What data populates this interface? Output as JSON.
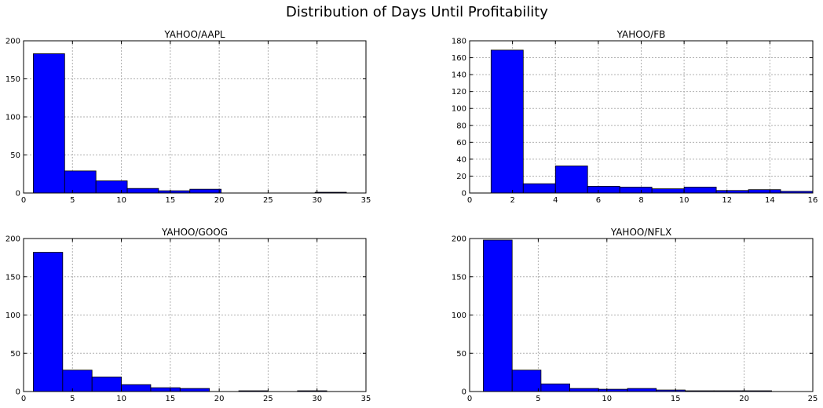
{
  "figure": {
    "title": "Distribution of Days Until Profitability"
  },
  "colors": {
    "bar_fill": "#0000ff",
    "bar_edge": "#000000",
    "grid": "#b0b0b0",
    "axes": "#000000"
  },
  "chart_data": [
    {
      "type": "bar",
      "title": "YAHOO/AAPL",
      "xlabel": "",
      "ylabel": "",
      "grid": true,
      "xlim": [
        0,
        35
      ],
      "ylim": [
        0,
        200
      ],
      "xticks": [
        0,
        5,
        10,
        15,
        20,
        25,
        30,
        35
      ],
      "yticks": [
        0,
        50,
        100,
        150,
        200
      ],
      "bins": [
        [
          1,
          4.2,
          183
        ],
        [
          4.2,
          7.4,
          29
        ],
        [
          7.4,
          10.6,
          16
        ],
        [
          10.6,
          13.8,
          6
        ],
        [
          13.8,
          17,
          3
        ],
        [
          17,
          20.2,
          5
        ],
        [
          20.2,
          23.4,
          0
        ],
        [
          23.4,
          26.6,
          0
        ],
        [
          26.6,
          29.8,
          0
        ],
        [
          29.8,
          33,
          1
        ]
      ]
    },
    {
      "type": "bar",
      "title": "YAHOO/FB",
      "xlabel": "",
      "ylabel": "",
      "grid": true,
      "xlim": [
        0,
        16
      ],
      "ylim": [
        0,
        180
      ],
      "xticks": [
        0,
        2,
        4,
        6,
        8,
        10,
        12,
        14,
        16
      ],
      "yticks": [
        0,
        20,
        40,
        60,
        80,
        100,
        120,
        140,
        160,
        180
      ],
      "bins": [
        [
          1,
          2.5,
          169
        ],
        [
          2.5,
          4,
          11
        ],
        [
          4,
          5.5,
          32
        ],
        [
          5.5,
          7,
          8
        ],
        [
          7,
          8.5,
          7
        ],
        [
          8.5,
          10,
          5
        ],
        [
          10,
          11.5,
          7
        ],
        [
          11.5,
          13,
          3
        ],
        [
          13,
          14.5,
          4
        ],
        [
          14.5,
          16,
          2
        ]
      ]
    },
    {
      "type": "bar",
      "title": "YAHOO/GOOG",
      "xlabel": "",
      "ylabel": "",
      "grid": true,
      "xlim": [
        0,
        35
      ],
      "ylim": [
        0,
        200
      ],
      "xticks": [
        0,
        5,
        10,
        15,
        20,
        25,
        30,
        35
      ],
      "yticks": [
        0,
        50,
        100,
        150,
        200
      ],
      "bins": [
        [
          1,
          4,
          182
        ],
        [
          4,
          7,
          28
        ],
        [
          7,
          10,
          19
        ],
        [
          10,
          13,
          9
        ],
        [
          13,
          16,
          5
        ],
        [
          16,
          19,
          4
        ],
        [
          19,
          22,
          0
        ],
        [
          22,
          25,
          1
        ],
        [
          25,
          28,
          0
        ],
        [
          28,
          31,
          1
        ]
      ]
    },
    {
      "type": "bar",
      "title": "YAHOO/NFLX",
      "xlabel": "",
      "ylabel": "",
      "grid": true,
      "xlim": [
        0,
        25
      ],
      "ylim": [
        0,
        200
      ],
      "xticks": [
        0,
        5,
        10,
        15,
        20,
        25
      ],
      "yticks": [
        0,
        50,
        100,
        150,
        200
      ],
      "bins": [
        [
          1,
          3.1,
          198
        ],
        [
          3.1,
          5.2,
          28
        ],
        [
          5.2,
          7.3,
          10
        ],
        [
          7.3,
          9.4,
          4
        ],
        [
          9.4,
          11.5,
          3
        ],
        [
          11.5,
          13.6,
          4
        ],
        [
          13.6,
          15.7,
          2
        ],
        [
          15.7,
          17.8,
          1
        ],
        [
          17.8,
          19.9,
          1
        ],
        [
          19.9,
          22,
          1
        ]
      ]
    }
  ]
}
